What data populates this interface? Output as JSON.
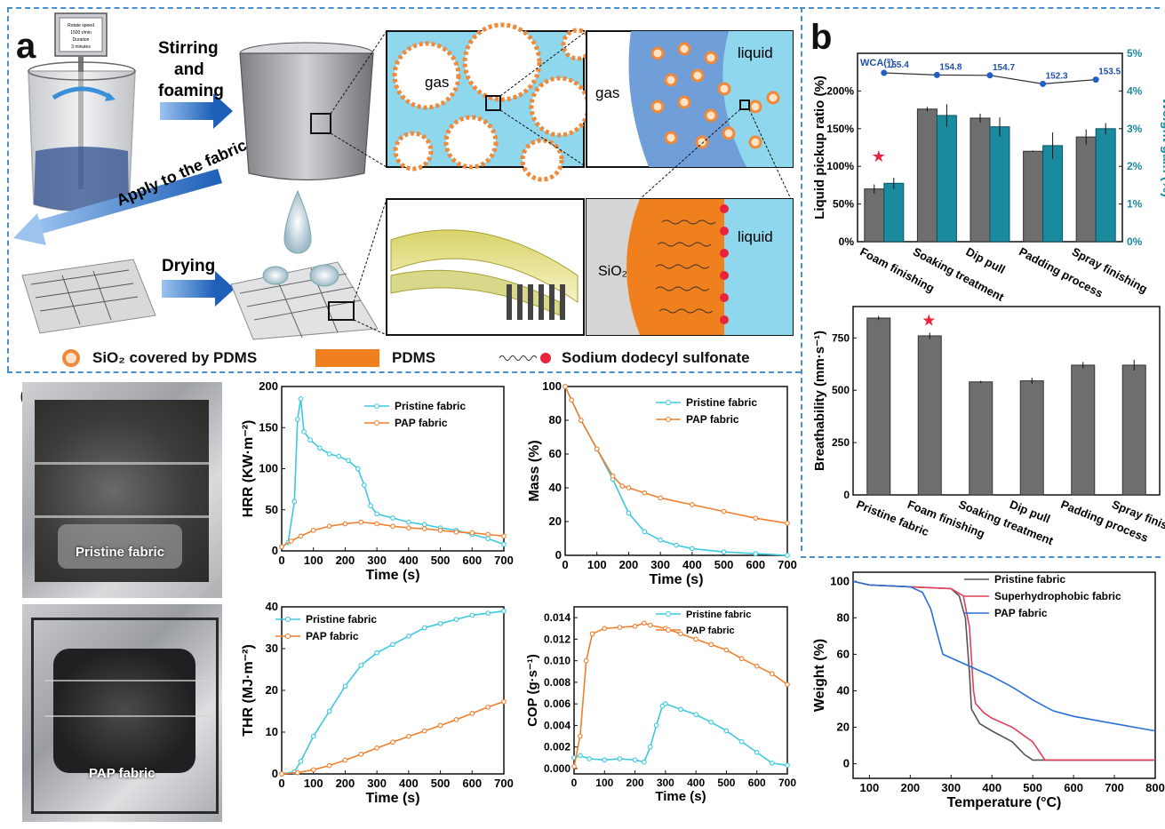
{
  "panel_a": {
    "letter": "a",
    "stirrer_text": [
      "Rotate speed",
      "1500 r/min",
      "Duration",
      "3 minutes"
    ],
    "step1": [
      "Stirring",
      "and",
      "foaming"
    ],
    "step2": "Apply to the fabric",
    "step3": "Drying",
    "gas_label_1": "gas",
    "gas_label_2": "gas",
    "liquid_label_1": "liquid",
    "liquid_label_2": "liquid",
    "sio2_label": "SiO₂"
  },
  "legend": {
    "sio2": "SiO₂ covered by PDMS",
    "pdms": "PDMS",
    "sds": "Sodium dodecyl sulfonate"
  },
  "panel_b": {
    "letter": "b"
  },
  "panel_c": {
    "letter": "c",
    "photo_top_label": "Pristine fabric",
    "photo_bottom_label": "PAP fabric"
  },
  "colors": {
    "pristine": "#3cc8e0",
    "pap": "#f07f2e",
    "teal_bar": "#1a8a9e",
    "gray_bar": "#6e6e6e",
    "superhydro": "#e0405a",
    "pap_tga": "#2a6fd6",
    "dash": "#4a8fd0"
  },
  "chart_data": [
    {
      "id": "pickup",
      "type": "bar",
      "categories": [
        "Foam finishing",
        "Soaking treatment",
        "Dip pull",
        "Padding process",
        "Spray finishing"
      ],
      "series": [
        {
          "name": "Liquid pickup ratio (%)",
          "values": [
            70,
            176,
            164,
            120,
            139
          ],
          "errors": [
            6,
            3,
            6,
            1,
            10
          ]
        },
        {
          "name": "Weight gain (%)",
          "values": [
            1.55,
            3.35,
            3.05,
            2.55,
            3.0
          ],
          "errors": [
            0.15,
            0.3,
            0.25,
            0.35,
            0.15
          ]
        },
        {
          "name": "WCA(°)",
          "values": [
            155.4,
            154.8,
            154.7,
            152.3,
            153.5
          ]
        }
      ],
      "ylabel": "Liquid pickup ratio (%)",
      "y2label": "Weight gain (%)",
      "yticks": [
        "0%",
        "50%",
        "100%",
        "150%",
        "200%"
      ],
      "y2ticks": [
        "0%",
        "1%",
        "2%",
        "3%",
        "4%",
        "5%"
      ],
      "ylim": [
        0,
        250
      ],
      "y2lim": [
        0,
        5
      ],
      "wca_label": "WCA(°)",
      "wca_labels": [
        "155.4",
        "154.8",
        "154.7",
        "152.3",
        "153.5"
      ]
    },
    {
      "id": "breath",
      "type": "bar",
      "categories": [
        "Pristine fabric",
        "Foam finishing",
        "Soaking treatment",
        "Dip pull",
        "Padding process",
        "Spray finishing"
      ],
      "values": [
        845,
        760,
        540,
        545,
        620,
        620
      ],
      "errors": [
        10,
        15,
        5,
        15,
        15,
        25
      ],
      "ylabel": "Breathability (mm·s⁻¹)",
      "ylim": [
        0,
        900
      ],
      "yticks": [
        0,
        250,
        500,
        750
      ]
    },
    {
      "id": "hrr",
      "type": "line",
      "xlabel": "Time (s)",
      "ylabel": "HRR (KW·m⁻²)",
      "xlim": [
        0,
        700
      ],
      "ylim": [
        0,
        200
      ],
      "xticks": [
        0,
        100,
        200,
        300,
        400,
        500,
        600,
        700
      ],
      "yticks": [
        0,
        50,
        100,
        150,
        200
      ],
      "series": [
        {
          "name": "Pristine fabric",
          "x": [
            0,
            20,
            40,
            50,
            60,
            70,
            90,
            120,
            150,
            180,
            210,
            240,
            260,
            280,
            300,
            350,
            400,
            450,
            500,
            550,
            600,
            650,
            700
          ],
          "y": [
            5,
            10,
            60,
            160,
            185,
            145,
            135,
            125,
            118,
            115,
            110,
            100,
            80,
            55,
            45,
            40,
            35,
            32,
            28,
            25,
            20,
            15,
            8
          ]
        },
        {
          "name": "PAP fabric",
          "x": [
            0,
            30,
            60,
            100,
            150,
            200,
            250,
            300,
            350,
            400,
            450,
            500,
            550,
            600,
            650,
            700
          ],
          "y": [
            5,
            12,
            18,
            25,
            30,
            33,
            35,
            33,
            30,
            28,
            27,
            25,
            23,
            22,
            20,
            18
          ]
        }
      ]
    },
    {
      "id": "mass",
      "type": "line",
      "xlabel": "Time (s)",
      "ylabel": "Mass (%)",
      "xlim": [
        0,
        700
      ],
      "ylim": [
        0,
        100
      ],
      "xticks": [
        0,
        100,
        200,
        300,
        400,
        500,
        600,
        700
      ],
      "yticks": [
        0,
        20,
        40,
        60,
        80,
        100
      ],
      "series": [
        {
          "name": "Pristine fabric",
          "x": [
            0,
            20,
            50,
            100,
            150,
            200,
            250,
            300,
            350,
            400,
            500,
            600,
            700
          ],
          "y": [
            100,
            92,
            80,
            63,
            45,
            25,
            14,
            9,
            6,
            4,
            2,
            1,
            0
          ]
        },
        {
          "name": "PAP fabric",
          "x": [
            0,
            20,
            50,
            100,
            150,
            180,
            200,
            250,
            300,
            400,
            500,
            600,
            700
          ],
          "y": [
            100,
            92,
            80,
            63,
            47,
            41,
            40,
            37,
            34,
            30,
            26,
            22,
            19
          ]
        }
      ]
    },
    {
      "id": "thr",
      "type": "line",
      "xlabel": "Time (s)",
      "ylabel": "THR (MJ·m⁻²)",
      "xlim": [
        0,
        700
      ],
      "ylim": [
        0,
        40
      ],
      "xticks": [
        0,
        100,
        200,
        300,
        400,
        500,
        600,
        700
      ],
      "yticks": [
        0,
        10,
        20,
        30,
        40
      ],
      "series": [
        {
          "name": "Pristine fabric",
          "x": [
            0,
            40,
            60,
            100,
            150,
            200,
            250,
            300,
            350,
            400,
            450,
            500,
            550,
            600,
            650,
            700
          ],
          "y": [
            0,
            0.5,
            3,
            9,
            15,
            21,
            26,
            29,
            31,
            33,
            35,
            36,
            37,
            38,
            38.5,
            39
          ]
        },
        {
          "name": "PAP fabric",
          "x": [
            0,
            50,
            100,
            150,
            200,
            250,
            300,
            350,
            400,
            450,
            500,
            550,
            600,
            650,
            700
          ],
          "y": [
            0,
            0.3,
            1,
            2,
            3.3,
            4.7,
            6.2,
            7.6,
            9,
            10.3,
            11.6,
            13,
            14.5,
            16,
            17.3
          ]
        }
      ]
    },
    {
      "id": "cop",
      "type": "line",
      "xlabel": "Time (s)",
      "ylabel": "COP (g·s⁻¹)",
      "xlim": [
        0,
        700
      ],
      "ylim": [
        -0.0005,
        0.015
      ],
      "xticks": [
        0,
        100,
        200,
        300,
        400,
        500,
        600,
        700
      ],
      "yticks": [
        0.0,
        0.002,
        0.004,
        0.006,
        0.008,
        0.01,
        0.012,
        0.014
      ],
      "series": [
        {
          "name": "Pristine fabric",
          "x": [
            0,
            20,
            50,
            100,
            150,
            200,
            230,
            250,
            270,
            290,
            300,
            350,
            400,
            450,
            500,
            550,
            600,
            650,
            700
          ],
          "y": [
            0.001,
            0.0012,
            0.0009,
            0.0008,
            0.0009,
            0.0008,
            0.0006,
            0.002,
            0.004,
            0.0058,
            0.006,
            0.0055,
            0.005,
            0.0043,
            0.0035,
            0.0025,
            0.0015,
            0.0005,
            0.0003
          ]
        },
        {
          "name": "PAP fabric",
          "x": [
            0,
            20,
            40,
            60,
            100,
            150,
            200,
            230,
            250,
            300,
            350,
            400,
            450,
            500,
            550,
            600,
            650,
            700
          ],
          "y": [
            0.0002,
            0.003,
            0.01,
            0.0125,
            0.013,
            0.0131,
            0.0132,
            0.0135,
            0.0133,
            0.013,
            0.0125,
            0.012,
            0.0115,
            0.011,
            0.0102,
            0.0095,
            0.0088,
            0.0078
          ]
        }
      ]
    },
    {
      "id": "tga",
      "type": "line",
      "xlabel": "Temperature (°C)",
      "ylabel": "Weight (%)",
      "xlim": [
        60,
        800
      ],
      "ylim": [
        -8,
        105
      ],
      "xticks": [
        100,
        200,
        300,
        400,
        500,
        600,
        700,
        800
      ],
      "yticks": [
        0,
        20,
        40,
        60,
        80,
        100
      ],
      "series": [
        {
          "name": "Pristine fabric",
          "x": [
            60,
            100,
            200,
            300,
            320,
            335,
            345,
            350,
            370,
            400,
            450,
            480,
            500,
            520,
            600,
            700,
            800
          ],
          "y": [
            100,
            98,
            97,
            96,
            92,
            80,
            50,
            30,
            22,
            18,
            12,
            5,
            2,
            2,
            2,
            2,
            2
          ]
        },
        {
          "name": "Superhydrophobic fabric",
          "x": [
            60,
            100,
            200,
            300,
            330,
            345,
            355,
            360,
            380,
            400,
            450,
            500,
            530,
            600,
            700,
            800
          ],
          "y": [
            100,
            98,
            97,
            96,
            92,
            75,
            40,
            33,
            28,
            25,
            20,
            12,
            2,
            2,
            2,
            2
          ]
        },
        {
          "name": "PAP fabric",
          "x": [
            60,
            100,
            200,
            230,
            250,
            270,
            280,
            300,
            350,
            400,
            450,
            500,
            550,
            600,
            700,
            800
          ],
          "y": [
            100,
            98,
            97,
            94,
            85,
            68,
            60,
            58,
            53,
            48,
            42,
            35,
            29,
            26,
            22,
            18
          ]
        }
      ]
    }
  ]
}
